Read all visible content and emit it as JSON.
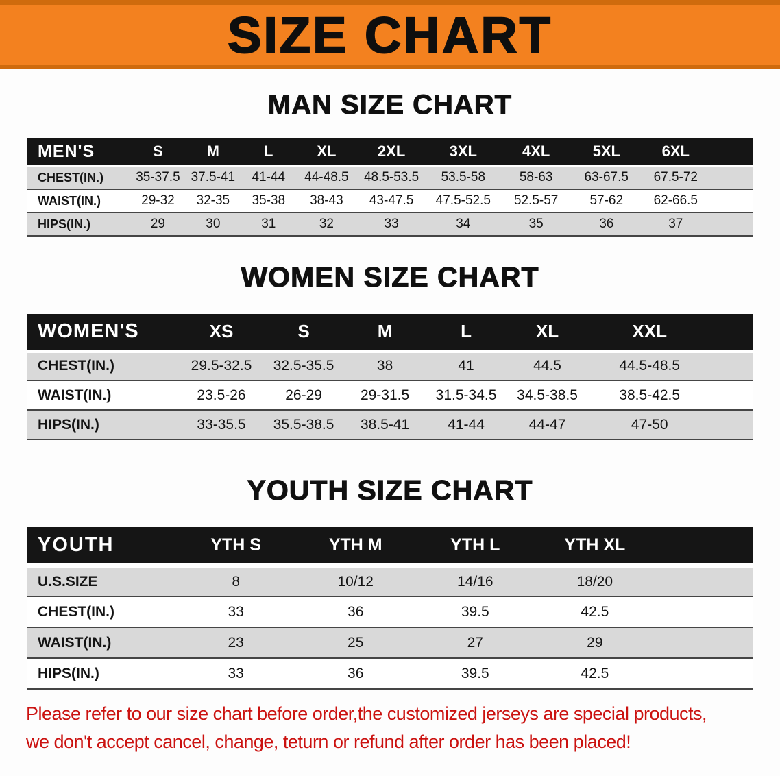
{
  "banner": {
    "title": "SIZE CHART"
  },
  "men": {
    "heading": "MAN SIZE CHART",
    "corner_label": "MEN'S",
    "sizes": [
      "S",
      "M",
      "L",
      "XL",
      "2XL",
      "3XL",
      "4XL",
      "5XL",
      "6XL"
    ],
    "rows": [
      {
        "label": "CHEST(IN.)",
        "values": [
          "35-37.5",
          "37.5-41",
          "41-44",
          "44-48.5",
          "48.5-53.5",
          "53.5-58",
          "58-63",
          "63-67.5",
          "67.5-72"
        ]
      },
      {
        "label": "WAIST(IN.)",
        "values": [
          "29-32",
          "32-35",
          "35-38",
          "38-43",
          "43-47.5",
          "47.5-52.5",
          "52.5-57",
          "57-62",
          "62-66.5"
        ]
      },
      {
        "label": "HIPS(IN.)",
        "values": [
          "29",
          "30",
          "31",
          "32",
          "33",
          "34",
          "35",
          "36",
          "37"
        ]
      }
    ]
  },
  "women": {
    "heading": "WOMEN SIZE CHART",
    "corner_label": "WOMEN'S",
    "sizes": [
      "XS",
      "S",
      "M",
      "L",
      "XL",
      "XXL"
    ],
    "rows": [
      {
        "label": "CHEST(IN.)",
        "values": [
          "29.5-32.5",
          "32.5-35.5",
          "38",
          "41",
          "44.5",
          "44.5-48.5"
        ]
      },
      {
        "label": "WAIST(IN.)",
        "values": [
          "23.5-26",
          "26-29",
          "29-31.5",
          "31.5-34.5",
          "34.5-38.5",
          "38.5-42.5"
        ]
      },
      {
        "label": "HIPS(IN.)",
        "values": [
          "33-35.5",
          "35.5-38.5",
          "38.5-41",
          "41-44",
          "44-47",
          "47-50"
        ]
      }
    ]
  },
  "youth": {
    "heading": "YOUTH SIZE CHART",
    "corner_label": "YOUTH",
    "sizes": [
      "YTH S",
      "YTH M",
      "YTH L",
      "YTH XL"
    ],
    "rows": [
      {
        "label": "U.S.SIZE",
        "values": [
          "8",
          "10/12",
          "14/16",
          "18/20"
        ]
      },
      {
        "label": "CHEST(IN.)",
        "values": [
          "33",
          "36",
          "39.5",
          "42.5"
        ]
      },
      {
        "label": "WAIST(IN.)",
        "values": [
          "23",
          "25",
          "27",
          "29"
        ]
      },
      {
        "label": "HIPS(IN.)",
        "values": [
          "33",
          "36",
          "39.5",
          "42.5"
        ]
      }
    ]
  },
  "footer": {
    "line1": "Please refer to our size chart before order,the customized jerseys are special products,",
    "line2": "we don't accept cancel, change, teturn or refund after order has been placed!"
  },
  "colors": {
    "banner_orange": "#f3811f",
    "banner_edge": "#cf6b0d",
    "header_black": "#151515",
    "row_gray": "#d9d9d9",
    "footer_red": "#cb1210"
  }
}
